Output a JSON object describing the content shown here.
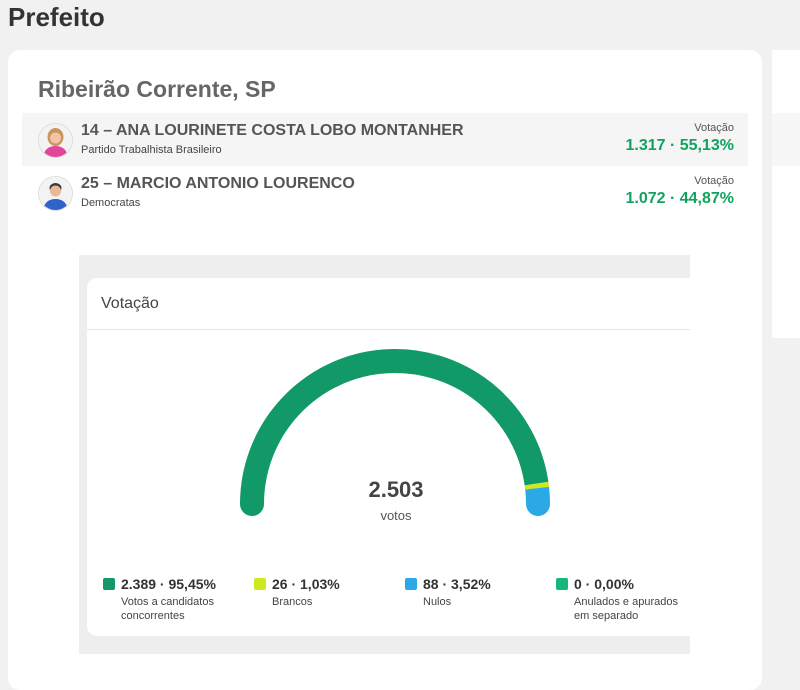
{
  "page": {
    "title": "Prefeito"
  },
  "card": {
    "city": "Ribeirão Corrente, SP"
  },
  "candidates": [
    {
      "name": "14 – ANA LOURINETE COSTA LOBO MONTANHER",
      "party": "Partido Trabalhista Brasileiro",
      "vote_label": "Votação",
      "vote_value": "1.317 · 55,13%",
      "avatar_icon": "female-candidate-photo"
    },
    {
      "name": "25 – MARCIO ANTONIO LOURENCO",
      "party": "Democratas",
      "vote_label": "Votação",
      "vote_value": "1.072 · 44,87%",
      "avatar_icon": "male-candidate-photo"
    }
  ],
  "colors": {
    "accent_green": "#11a35d",
    "valid": "#129968",
    "blank": "#cfe81f",
    "null": "#2aa9e6",
    "annulled": "#14b87a"
  },
  "chart_data": {
    "type": "gauge",
    "title": "Votação",
    "total": "2.503",
    "total_label": "votos",
    "segments": [
      {
        "value": 2389,
        "percent": 95.45,
        "display": "2.389 · 95,45%",
        "label": "Votos a candidatos concorrentes",
        "color": "#129968"
      },
      {
        "value": 26,
        "percent": 1.03,
        "display": "26 · 1,03%",
        "label": "Brancos",
        "color": "#cfe81f"
      },
      {
        "value": 88,
        "percent": 3.52,
        "display": "88 · 3,52%",
        "label": "Nulos",
        "color": "#2aa9e6"
      },
      {
        "value": 0,
        "percent": 0.0,
        "display": "0 · 0,00%",
        "label": "Anulados e apurados em separado",
        "color": "#14b87a"
      }
    ]
  }
}
